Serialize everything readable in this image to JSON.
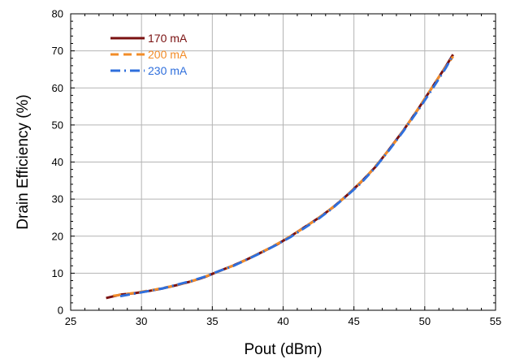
{
  "chart_data": {
    "type": "line",
    "title": "",
    "xlabel": "Pout (dBm)",
    "ylabel": "Drain Efficiency (%)",
    "xlim": [
      25,
      55
    ],
    "ylim": [
      0,
      80
    ],
    "xticks": [
      25,
      30,
      35,
      40,
      45,
      50,
      55
    ],
    "yticks": [
      0,
      10,
      20,
      30,
      40,
      50,
      60,
      70,
      80
    ],
    "grid": true,
    "legend_position": "top-left",
    "series": [
      {
        "name": "170 mA",
        "color": "#7a1111",
        "style": "solid",
        "x": [
          27.5,
          28.5,
          29.5,
          30.5,
          31.5,
          32.5,
          33.5,
          34.5,
          35.5,
          36.5,
          37.5,
          38.5,
          39.5,
          40.5,
          41.5,
          42.5,
          43.5,
          44.5,
          45.5,
          46.5,
          47.5,
          48.5,
          49.5,
          50.5,
          51.5,
          52.0
        ],
        "y": [
          3.3,
          4.2,
          4.6,
          5.2,
          5.9,
          6.8,
          7.8,
          9.0,
          10.6,
          12.1,
          13.8,
          15.7,
          17.6,
          19.9,
          22.4,
          24.9,
          27.7,
          31.0,
          34.6,
          38.6,
          43.5,
          48.6,
          54.1,
          60.0,
          65.9,
          69.0
        ]
      },
      {
        "name": "200 mA",
        "color": "#f28c28",
        "style": "dashed",
        "x": [
          28.0,
          29.0,
          30.0,
          31.0,
          32.0,
          33.0,
          34.0,
          35.0,
          36.0,
          37.0,
          38.0,
          39.0,
          40.0,
          41.0,
          42.0,
          43.0,
          44.0,
          45.0,
          46.0,
          47.0,
          48.0,
          49.0,
          50.0,
          51.0,
          52.0
        ],
        "y": [
          3.9,
          4.4,
          5.0,
          5.6,
          6.4,
          7.3,
          8.4,
          9.8,
          11.3,
          12.9,
          14.8,
          16.7,
          18.8,
          21.1,
          23.6,
          26.3,
          29.3,
          32.8,
          36.6,
          41.0,
          45.9,
          51.3,
          57.1,
          63.0,
          68.5
        ]
      },
      {
        "name": "230 mA",
        "color": "#2f6fdc",
        "style": "dash-dot",
        "x": [
          28.5,
          29.5,
          30.5,
          31.5,
          32.5,
          33.5,
          34.5,
          35.5,
          36.5,
          37.5,
          38.5,
          39.5,
          40.5,
          41.5,
          42.5,
          43.5,
          44.5,
          45.5,
          46.5,
          47.5,
          48.5,
          49.5,
          50.5,
          51.5,
          52.0
        ],
        "y": [
          3.8,
          4.5,
          5.2,
          5.9,
          6.9,
          7.9,
          9.1,
          10.6,
          12.0,
          13.8,
          15.6,
          17.6,
          19.7,
          22.2,
          24.7,
          27.6,
          30.9,
          34.3,
          38.5,
          43.3,
          48.4,
          53.8,
          59.5,
          65.5,
          68.9
        ]
      }
    ]
  }
}
